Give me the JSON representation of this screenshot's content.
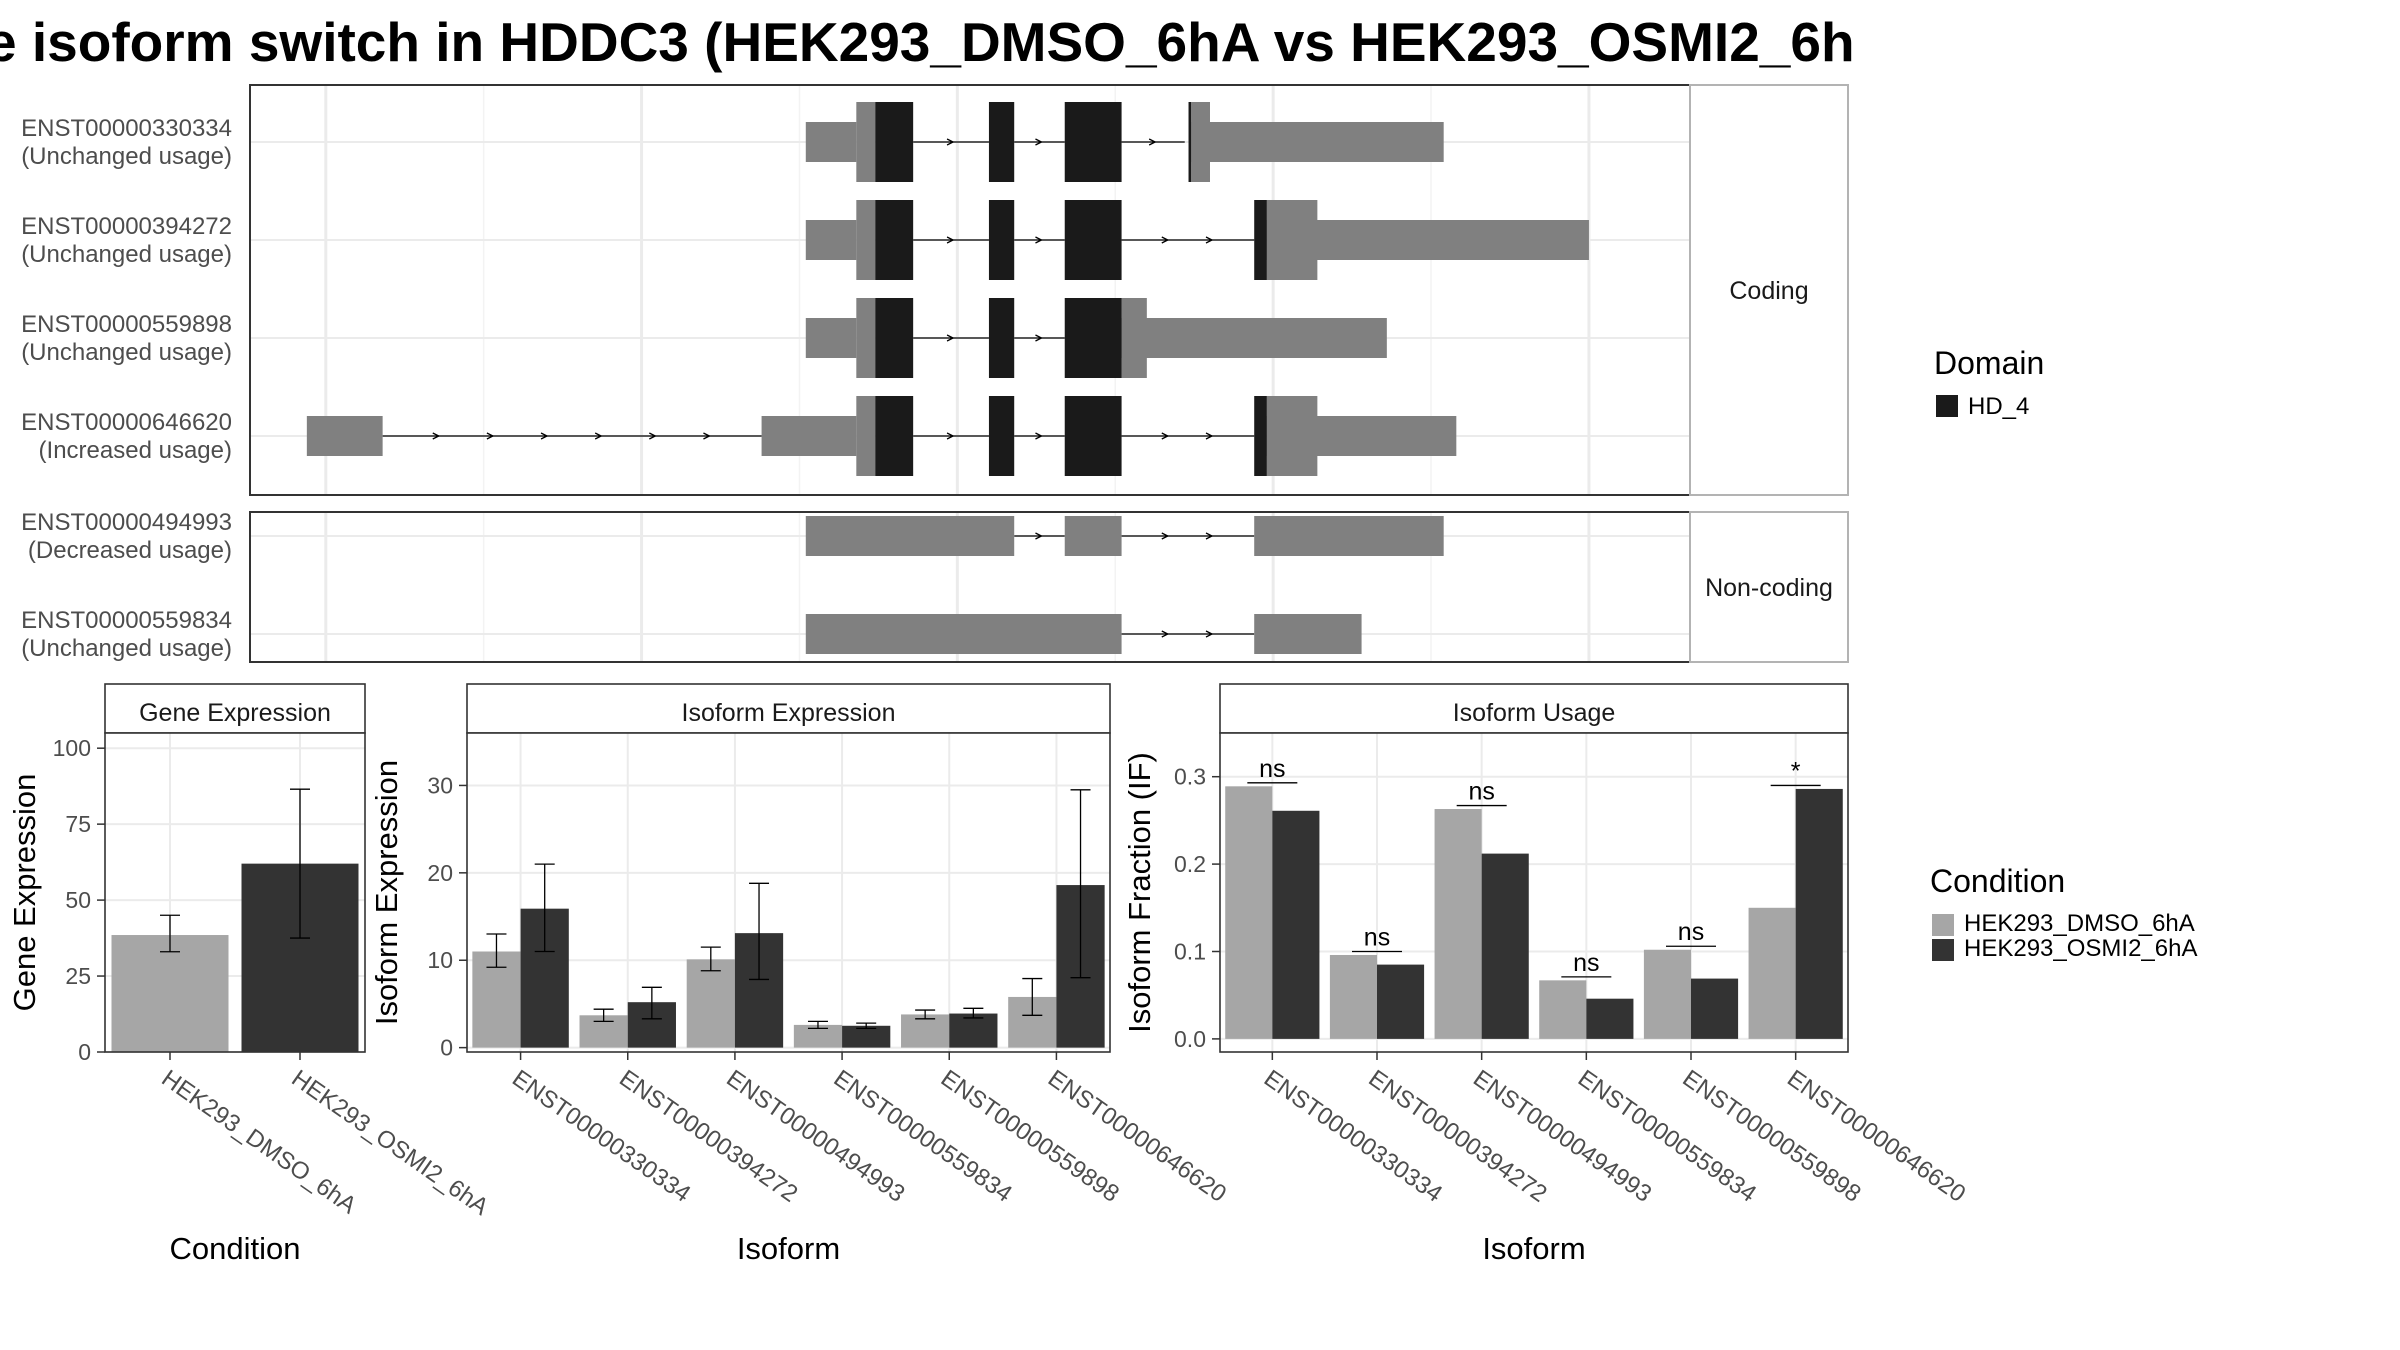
{
  "title": "e isoform switch in HDDC3 (HEK293_DMSO_6hA vs HEK293_OSMI2_6h",
  "colors": {
    "utr": "#808080",
    "cds": "#1a1a1a",
    "domain": "#1a1a1a",
    "dmso": "#a6a6a6",
    "osmi": "#333333",
    "frame": "#333333",
    "grid": "#ebebeb",
    "strip_bg": "#ffffff"
  },
  "structure": {
    "panels": [
      {
        "label": "Coding",
        "transcripts": [
          {
            "id": "ENST00000330334",
            "usage": "(Unchanged usage)",
            "utr": [
              [
                440,
                480
              ],
              [
                745,
                945
              ]
            ],
            "cds": [
              [
                480,
                495
              ],
              [
                495,
                525
              ],
              [
                585,
                605
              ],
              [
                645,
                690
              ],
              [
                740,
                745
              ]
            ],
            "domain": [
              [
                495,
                525
              ],
              [
                585,
                605
              ],
              [
                645,
                690
              ],
              [
                743,
                745
              ]
            ],
            "introns": [
              [
                525,
                585
              ],
              [
                605,
                645
              ],
              [
                690,
                740
              ]
            ],
            "utr_wide": [
              [
                480,
                495
              ],
              [
                745,
                760
              ]
            ]
          },
          {
            "id": "ENST00000394272",
            "usage": "(Unchanged usage)",
            "utr": [
              [
                440,
                480
              ],
              [
                805,
                1060
              ]
            ],
            "cds": [
              [
                480,
                495
              ],
              [
                495,
                525
              ],
              [
                585,
                605
              ],
              [
                645,
                690
              ],
              [
                795,
                805
              ]
            ],
            "domain": [
              [
                495,
                525
              ],
              [
                585,
                605
              ],
              [
                645,
                690
              ],
              [
                795,
                805
              ]
            ],
            "introns": [
              [
                525,
                585
              ],
              [
                605,
                645
              ],
              [
                690,
                795
              ]
            ],
            "utr_wide": [
              [
                480,
                495
              ],
              [
                805,
                845
              ]
            ]
          },
          {
            "id": "ENST00000559898",
            "usage": "(Unchanged usage)",
            "utr": [
              [
                440,
                480
              ],
              [
                690,
                900
              ]
            ],
            "cds": [
              [
                480,
                495
              ],
              [
                495,
                525
              ],
              [
                585,
                605
              ],
              [
                645,
                690
              ]
            ],
            "domain": [
              [
                495,
                525
              ],
              [
                585,
                605
              ],
              [
                645,
                690
              ]
            ],
            "introns": [
              [
                525,
                585
              ],
              [
                605,
                645
              ]
            ],
            "utr_wide": [
              [
                480,
                495
              ],
              [
                690,
                710
              ]
            ]
          },
          {
            "id": "ENST00000646620",
            "usage": "(Increased usage)",
            "utr": [
              [
                45,
                105
              ],
              [
                405,
                480
              ],
              [
                805,
                955
              ]
            ],
            "cds": [
              [
                480,
                495
              ],
              [
                495,
                525
              ],
              [
                585,
                605
              ],
              [
                645,
                690
              ],
              [
                795,
                805
              ]
            ],
            "domain": [
              [
                495,
                525
              ],
              [
                585,
                605
              ],
              [
                645,
                690
              ],
              [
                795,
                805
              ]
            ],
            "introns": [
              [
                105,
                405
              ],
              [
                525,
                585
              ],
              [
                605,
                645
              ],
              [
                690,
                795
              ]
            ],
            "utr_wide": [
              [
                480,
                495
              ],
              [
                805,
                845
              ]
            ]
          }
        ]
      },
      {
        "label": "Non-coding",
        "transcripts": [
          {
            "id": "ENST00000494993",
            "usage": "(Decreased usage)",
            "exons": [
              [
                440,
                605
              ],
              [
                645,
                690
              ],
              [
                795,
                945
              ]
            ],
            "introns": [
              [
                605,
                645
              ],
              [
                690,
                795
              ]
            ]
          },
          {
            "id": "ENST00000559834",
            "usage": "(Unchanged usage)",
            "exons": [
              [
                440,
                690
              ],
              [
                795,
                880
              ]
            ],
            "introns": [
              [
                690,
                795
              ]
            ]
          }
        ]
      }
    ]
  },
  "legend_domain": {
    "title": "Domain",
    "items": [
      "HD_4"
    ]
  },
  "legend_condition": {
    "title": "Condition",
    "items": [
      "HEK293_DMSO_6hA",
      "HEK293_OSMI2_6hA"
    ]
  },
  "chart_data": [
    {
      "type": "bar",
      "title": "Gene Expression",
      "xlabel": "Condition",
      "ylabel": "Gene Expression",
      "ylim": [
        0,
        105
      ],
      "yticks": [
        0,
        25,
        50,
        75,
        100
      ],
      "categories": [
        "HEK293_DMSO_6hA",
        "HEK293_OSMI2_6hA"
      ],
      "values": [
        38.5,
        62.0
      ],
      "errors": [
        [
          33.0,
          45.0
        ],
        [
          37.5,
          86.5
        ]
      ]
    },
    {
      "type": "bar",
      "title": "Isoform Expression",
      "xlabel": "Isoform",
      "ylabel": "Isoform Expression",
      "ylim": [
        -0.5,
        36
      ],
      "yticks": [
        0,
        10,
        20,
        30
      ],
      "categories": [
        "ENST00000330334",
        "ENST00000394272",
        "ENST00000494993",
        "ENST00000559834",
        "ENST00000559898",
        "ENST00000646620"
      ],
      "series": [
        {
          "name": "HEK293_DMSO_6hA",
          "values": [
            11.0,
            3.7,
            10.1,
            2.6,
            3.8,
            5.8
          ],
          "errors": [
            [
              9.2,
              13.0
            ],
            [
              3.0,
              4.4
            ],
            [
              8.8,
              11.5
            ],
            [
              2.2,
              3.0
            ],
            [
              3.3,
              4.3
            ],
            [
              3.7,
              7.9
            ]
          ]
        },
        {
          "name": "HEK293_OSMI2_6hA",
          "values": [
            15.9,
            5.2,
            13.1,
            2.5,
            3.9,
            18.6
          ],
          "errors": [
            [
              11.0,
              21.0
            ],
            [
              3.3,
              6.9
            ],
            [
              7.8,
              18.8
            ],
            [
              2.2,
              2.8
            ],
            [
              3.4,
              4.5
            ],
            [
              8.0,
              29.5
            ]
          ]
        }
      ]
    },
    {
      "type": "bar",
      "title": "Isoform Usage",
      "xlabel": "Isoform",
      "ylabel": "Isoform Fraction (IF)",
      "ylim": [
        -0.015,
        0.35
      ],
      "yticks": [
        0.0,
        0.1,
        0.2,
        0.3
      ],
      "ytick_labels": [
        "0.0",
        "0.1",
        "0.2",
        "0.3"
      ],
      "categories": [
        "ENST00000330334",
        "ENST00000394272",
        "ENST00000494993",
        "ENST00000559834",
        "ENST00000559898",
        "ENST00000646620"
      ],
      "series": [
        {
          "name": "HEK293_DMSO_6hA",
          "values": [
            0.289,
            0.096,
            0.263,
            0.067,
            0.102,
            0.15
          ]
        },
        {
          "name": "HEK293_OSMI2_6hA",
          "values": [
            0.261,
            0.085,
            0.212,
            0.046,
            0.069,
            0.286
          ]
        }
      ],
      "significance": [
        "ns",
        "ns",
        "ns",
        "ns",
        "ns",
        "*"
      ]
    }
  ]
}
